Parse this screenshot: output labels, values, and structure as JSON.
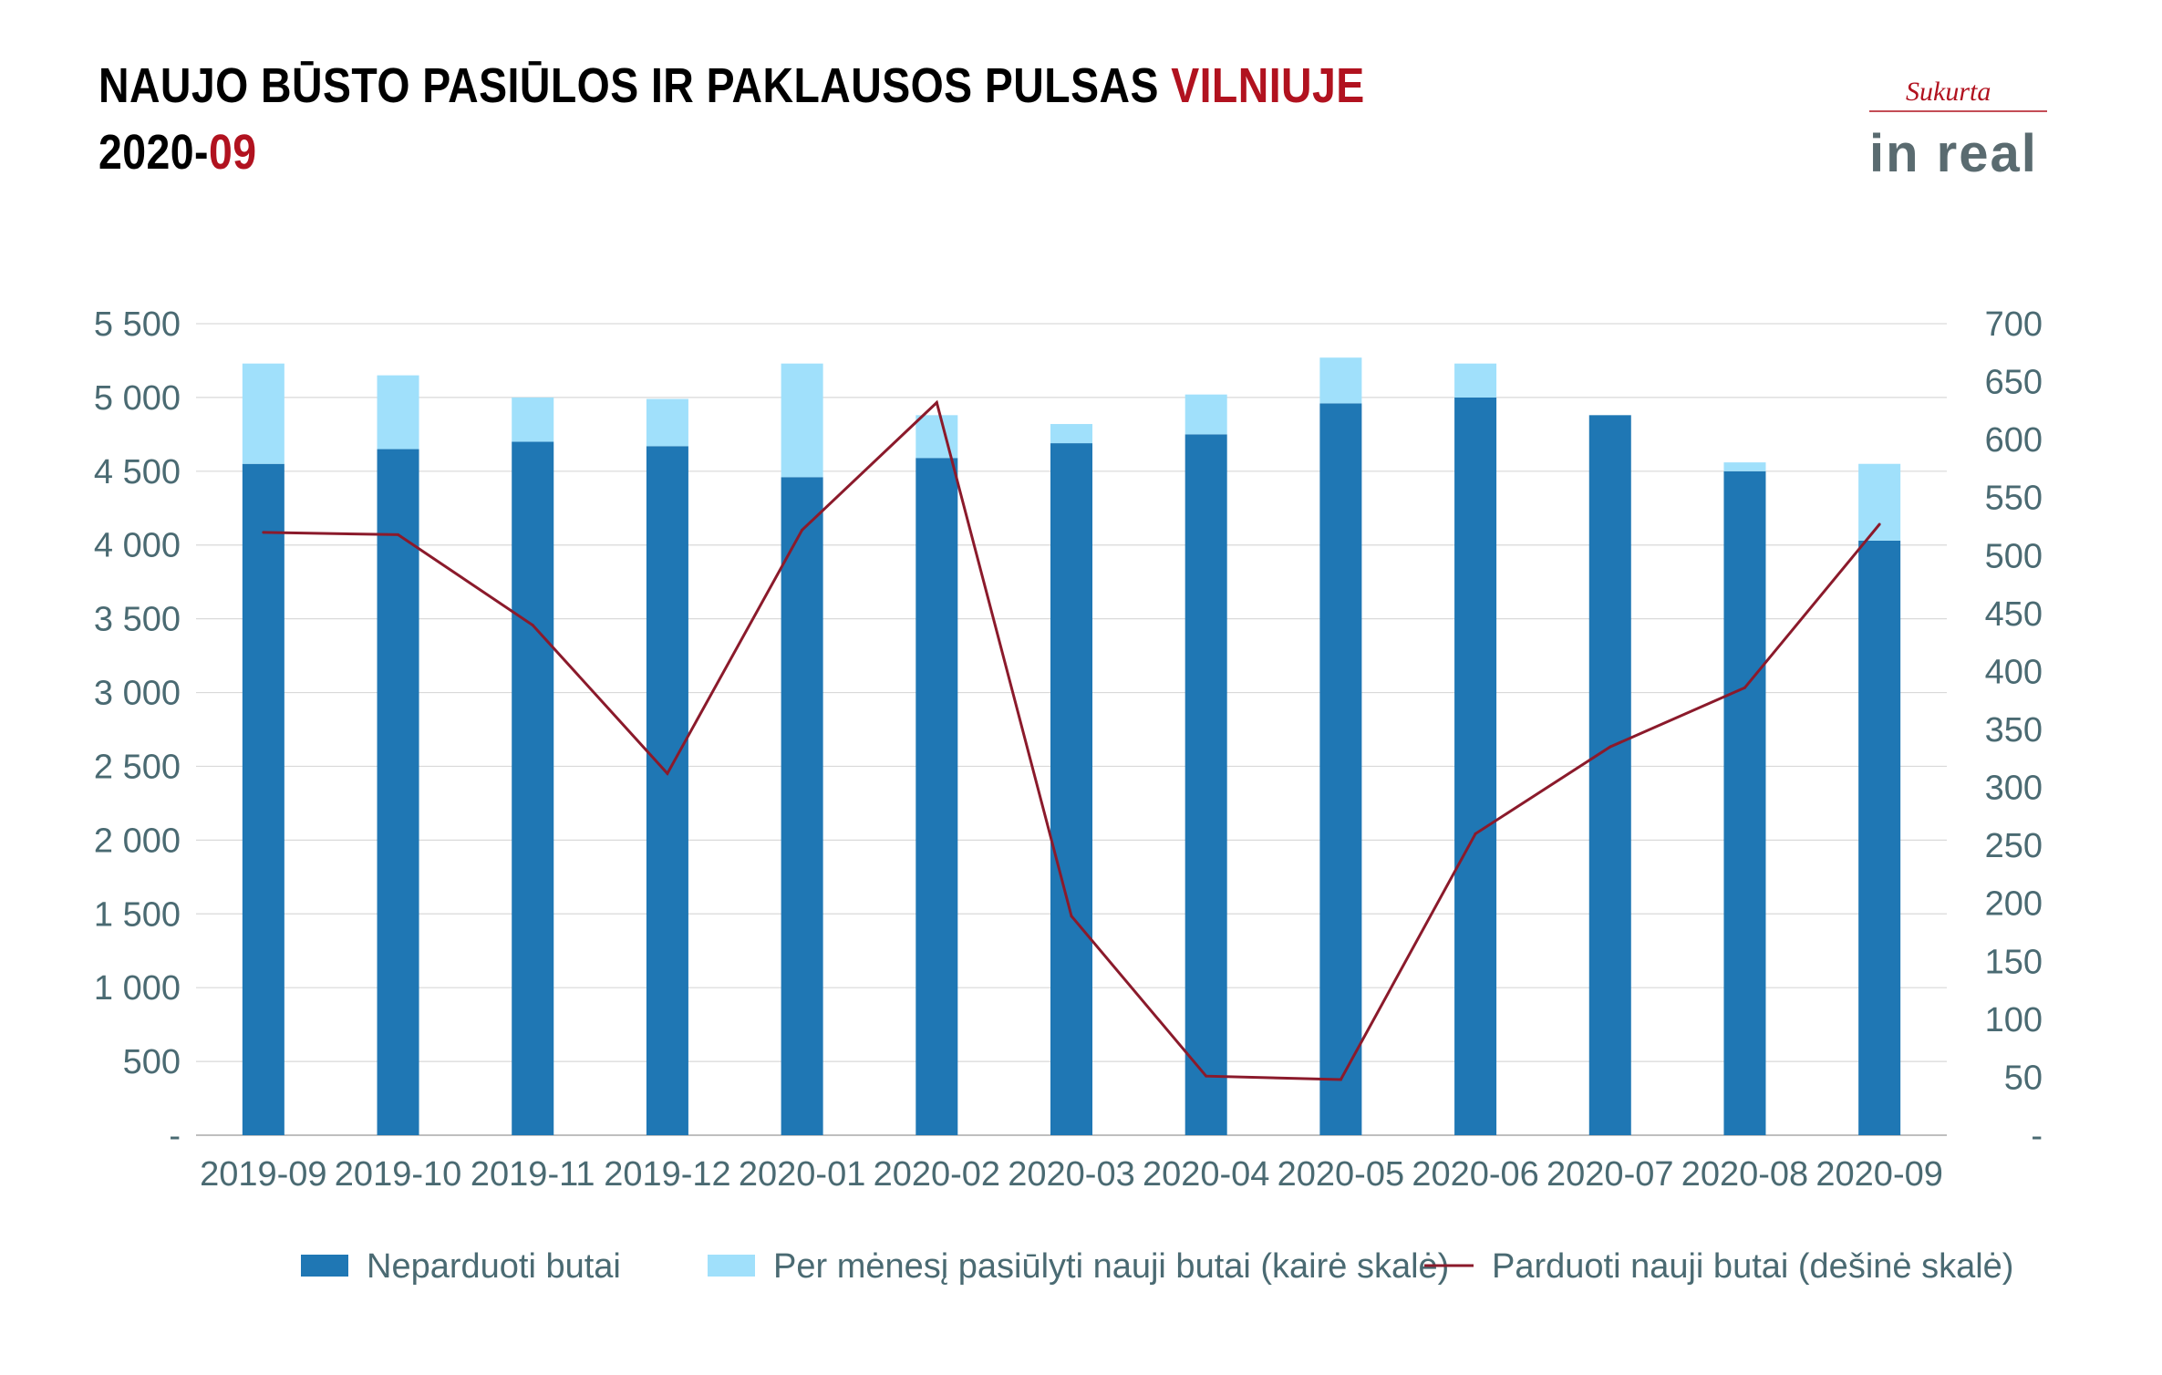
{
  "header": {
    "title_main": "NAUJO BŪSTO PASIŪLOS IR PAKLAUSOS PULSAS",
    "title_city": "VILNIUJE",
    "period_prefix": "2020-",
    "period_month": "09"
  },
  "logo": {
    "script_text": "Sukurta",
    "brand_text": "in real"
  },
  "colors": {
    "accent": "#b1121f",
    "unsold": "#1f77b4",
    "offered": "#a0e0fb",
    "sold": "#8b1a2b",
    "axis_text": "#4a6a72",
    "grid": "#d9d9d9"
  },
  "chart_data": {
    "type": "bar",
    "categories": [
      "2019-09",
      "2019-10",
      "2019-11",
      "2019-12",
      "2020-01",
      "2020-02",
      "2020-03",
      "2020-04",
      "2020-05",
      "2020-06",
      "2020-07",
      "2020-08",
      "2020-09"
    ],
    "series": [
      {
        "name": "Neparduoti butai",
        "type": "bar",
        "axis": "left",
        "stack": "a",
        "values": [
          4550,
          4650,
          4700,
          4670,
          4460,
          4590,
          4690,
          4750,
          4960,
          5000,
          4880,
          4500,
          4030
        ]
      },
      {
        "name": "Per mėnesį pasiūlyti nauji butai (kairė skalė)",
        "type": "bar",
        "axis": "left",
        "stack": "a",
        "values": [
          680,
          500,
          300,
          320,
          770,
          290,
          130,
          270,
          310,
          230,
          0,
          60,
          520
        ]
      },
      {
        "name": "Parduoti nauji butai (dešinė skalė)",
        "type": "line",
        "axis": "right",
        "values": [
          520,
          518,
          440,
          312,
          522,
          632,
          189,
          51,
          48,
          260,
          335,
          386,
          527
        ]
      }
    ],
    "left_axis": {
      "ylim": [
        0,
        5500
      ],
      "ticks": [
        0,
        500,
        1000,
        1500,
        2000,
        2500,
        3000,
        3500,
        4000,
        4500,
        5000,
        5500
      ],
      "tick_labels": [
        "-",
        "500",
        "1 000",
        "1 500",
        "2 000",
        "2 500",
        "3 000",
        "3 500",
        "4 000",
        "4 500",
        "5 000",
        "5 500"
      ]
    },
    "right_axis": {
      "ylim": [
        0,
        700
      ],
      "ticks": [
        0,
        50,
        100,
        150,
        200,
        250,
        300,
        350,
        400,
        450,
        500,
        550,
        600,
        650,
        700
      ],
      "tick_labels": [
        "-",
        "50",
        "100",
        "150",
        "200",
        "250",
        "300",
        "350",
        "400",
        "450",
        "500",
        "550",
        "600",
        "650",
        "700"
      ]
    },
    "grid": true,
    "legend_position": "bottom"
  }
}
